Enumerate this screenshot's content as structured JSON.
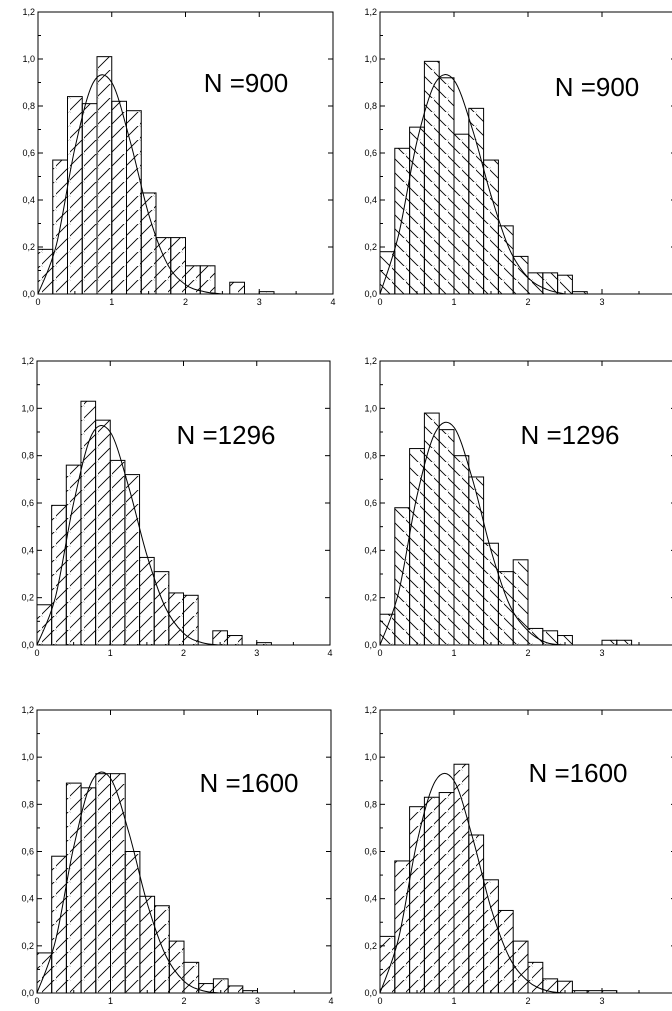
{
  "chart_data": [
    {
      "type": "bar",
      "title": "",
      "xlabel": "",
      "ylabel": "",
      "annotation": "N =900",
      "xlim": [
        0,
        4
      ],
      "ylim": [
        0,
        1.2
      ],
      "xticks": [
        "0",
        "1",
        "2",
        "3",
        "4"
      ],
      "yticks": [
        "0,0",
        "0,2",
        "0,4",
        "0,6",
        "0,8",
        "1,0",
        "1,2"
      ],
      "bin_width": 0.2,
      "bin_starts": [
        0.0,
        0.2,
        0.4,
        0.6,
        0.8,
        1.0,
        1.2,
        1.4,
        1.6,
        1.8,
        2.0,
        2.2,
        2.4,
        2.6,
        2.8,
        3.0
      ],
      "values": [
        0.19,
        0.57,
        0.84,
        0.81,
        1.01,
        0.82,
        0.78,
        0.43,
        0.24,
        0.24,
        0.12,
        0.12,
        0.0,
        0.05,
        0.0,
        0.01
      ],
      "hatch": "right",
      "fit_curve": {
        "x": [
          0,
          0.25,
          0.5,
          0.75,
          1.0,
          1.25,
          1.5,
          1.75,
          2.0,
          2.25,
          2.5
        ],
        "y": [
          0.0,
          0.21,
          0.62,
          0.9,
          0.9,
          0.65,
          0.34,
          0.13,
          0.04,
          0.01,
          0.0
        ]
      }
    },
    {
      "type": "bar",
      "title": "",
      "xlabel": "",
      "ylabel": "",
      "annotation": "N =900",
      "xlim": [
        0,
        4
      ],
      "ylim": [
        0,
        1.2
      ],
      "xticks": [
        "0",
        "1",
        "2",
        "3",
        ""
      ],
      "yticks": [
        "0,0",
        "0,2",
        "0,4",
        "0,6",
        "0,8",
        "1,0",
        "1,2"
      ],
      "bin_width": 0.2,
      "bin_starts": [
        0.0,
        0.2,
        0.4,
        0.6,
        0.8,
        1.0,
        1.2,
        1.4,
        1.6,
        1.8,
        2.0,
        2.2,
        2.4,
        2.6
      ],
      "values": [
        0.18,
        0.62,
        0.71,
        0.99,
        0.92,
        0.68,
        0.79,
        0.57,
        0.29,
        0.16,
        0.09,
        0.09,
        0.08,
        0.01
      ],
      "hatch": "left",
      "fit_curve": {
        "x": [
          0,
          0.25,
          0.5,
          0.75,
          1.0,
          1.25,
          1.5,
          1.75,
          2.0,
          2.25,
          2.5
        ],
        "y": [
          0.0,
          0.25,
          0.65,
          0.9,
          0.91,
          0.7,
          0.42,
          0.19,
          0.07,
          0.02,
          0.0
        ]
      }
    },
    {
      "type": "bar",
      "title": "",
      "xlabel": "",
      "ylabel": "",
      "annotation": "N =1296",
      "xlim": [
        0,
        4
      ],
      "ylim": [
        0,
        1.2
      ],
      "xticks": [
        "0",
        "1",
        "2",
        "3",
        "4"
      ],
      "yticks": [
        "0,0",
        "0,2",
        "0,4",
        "0,6",
        "0,8",
        "1,0",
        "1,2"
      ],
      "bin_width": 0.2,
      "bin_starts": [
        0.0,
        0.2,
        0.4,
        0.6,
        0.8,
        1.0,
        1.2,
        1.4,
        1.6,
        1.8,
        2.0,
        2.2,
        2.4,
        2.6,
        2.8,
        3.0
      ],
      "values": [
        0.17,
        0.59,
        0.76,
        1.03,
        0.95,
        0.78,
        0.72,
        0.37,
        0.31,
        0.22,
        0.21,
        0.0,
        0.06,
        0.04,
        0.0,
        0.01
      ],
      "hatch": "right",
      "fit_curve": {
        "x": [
          0,
          0.25,
          0.5,
          0.75,
          1.0,
          1.25,
          1.5,
          1.75,
          2.0,
          2.25,
          2.5
        ],
        "y": [
          0.0,
          0.2,
          0.6,
          0.89,
          0.9,
          0.67,
          0.38,
          0.16,
          0.05,
          0.01,
          0.0
        ]
      }
    },
    {
      "type": "bar",
      "title": "",
      "xlabel": "",
      "ylabel": "",
      "annotation": "N =1296",
      "xlim": [
        0,
        4
      ],
      "ylim": [
        0,
        1.2
      ],
      "xticks": [
        "0",
        "1",
        "2",
        "3",
        ""
      ],
      "yticks": [
        "0,0",
        "0,2",
        "0,4",
        "0,6",
        "0,8",
        "1,0",
        "1,2"
      ],
      "bin_width": 0.2,
      "bin_starts": [
        0.0,
        0.2,
        0.4,
        0.6,
        0.8,
        1.0,
        1.2,
        1.4,
        1.6,
        1.8,
        2.0,
        2.2,
        2.4,
        2.6,
        2.8,
        3.0,
        3.2
      ],
      "values": [
        0.13,
        0.58,
        0.83,
        0.98,
        0.91,
        0.8,
        0.71,
        0.43,
        0.31,
        0.36,
        0.07,
        0.06,
        0.04,
        0.0,
        0.0,
        0.02,
        0.02
      ],
      "hatch": "left",
      "fit_curve": {
        "x": [
          0,
          0.25,
          0.5,
          0.75,
          1.0,
          1.25,
          1.5,
          1.75,
          2.0,
          2.25,
          2.5
        ],
        "y": [
          0.0,
          0.22,
          0.63,
          0.9,
          0.92,
          0.7,
          0.4,
          0.17,
          0.06,
          0.01,
          0.0
        ]
      }
    },
    {
      "type": "bar",
      "title": "",
      "xlabel": "",
      "ylabel": "",
      "annotation": "N =1600",
      "xlim": [
        0,
        4
      ],
      "ylim": [
        0,
        1.2
      ],
      "xticks": [
        "0",
        "1",
        "2",
        "3",
        "4"
      ],
      "yticks": [
        "0,0",
        "0,2",
        "0,4",
        "0,6",
        "0,8",
        "1,0",
        "1,2"
      ],
      "bin_width": 0.2,
      "bin_starts": [
        0.0,
        0.2,
        0.4,
        0.6,
        0.8,
        1.0,
        1.2,
        1.4,
        1.6,
        1.8,
        2.0,
        2.2,
        2.4,
        2.6,
        2.8
      ],
      "values": [
        0.17,
        0.58,
        0.89,
        0.87,
        0.93,
        0.93,
        0.6,
        0.41,
        0.37,
        0.22,
        0.13,
        0.04,
        0.06,
        0.03,
        0.01
      ],
      "hatch": "right",
      "fit_curve": {
        "x": [
          0,
          0.25,
          0.5,
          0.75,
          1.0,
          1.25,
          1.5,
          1.75,
          2.0,
          2.25,
          2.5
        ],
        "y": [
          0.0,
          0.22,
          0.62,
          0.9,
          0.91,
          0.68,
          0.38,
          0.16,
          0.05,
          0.01,
          0.0
        ]
      }
    },
    {
      "type": "bar",
      "title": "",
      "xlabel": "",
      "ylabel": "",
      "annotation": "N =1600",
      "xlim": [
        0,
        4
      ],
      "ylim": [
        0,
        1.2
      ],
      "xticks": [
        "0",
        "1",
        "2",
        "3",
        ""
      ],
      "yticks": [
        "0,0",
        "0,2",
        "0,4",
        "0,6",
        "0,8",
        "1,0",
        "1,2"
      ],
      "bin_width": 0.2,
      "bin_starts": [
        0.0,
        0.2,
        0.4,
        0.6,
        0.8,
        1.0,
        1.2,
        1.4,
        1.6,
        1.8,
        2.0,
        2.2,
        2.4,
        2.6,
        2.8,
        3.0
      ],
      "values": [
        0.24,
        0.56,
        0.79,
        0.83,
        0.85,
        0.97,
        0.67,
        0.48,
        0.35,
        0.22,
        0.13,
        0.06,
        0.05,
        0.01,
        0.01,
        0.01
      ],
      "hatch": "right",
      "fit_curve": {
        "x": [
          0,
          0.25,
          0.5,
          0.75,
          1.0,
          1.25,
          1.5,
          1.75,
          2.0,
          2.25,
          2.5
        ],
        "y": [
          0.0,
          0.23,
          0.64,
          0.9,
          0.9,
          0.66,
          0.36,
          0.15,
          0.05,
          0.01,
          0.0
        ]
      }
    }
  ]
}
